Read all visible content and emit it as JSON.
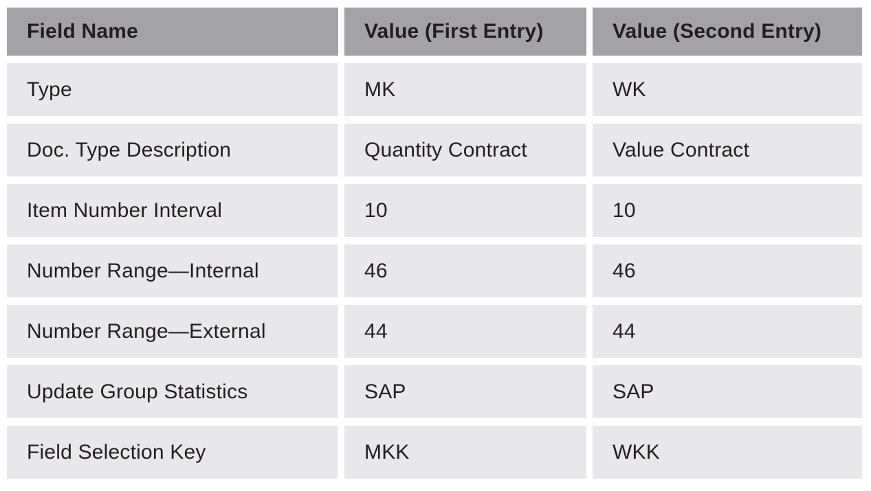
{
  "table": {
    "columns": [
      "Field Name",
      "Value (First Entry)",
      "Value (Second Entry)"
    ],
    "rows": [
      {
        "field": "Type",
        "first": "MK",
        "second": "WK"
      },
      {
        "field": "Doc. Type Description",
        "first": "Quantity Contract",
        "second": "Value Contract"
      },
      {
        "field": "Item Number Interval",
        "first": "10",
        "second": "10"
      },
      {
        "field": "Number Range—Internal",
        "first": "46",
        "second": "46"
      },
      {
        "field": "Number Range—External",
        "first": "44",
        "second": "44"
      },
      {
        "field": "Update Group Statistics",
        "first": "SAP",
        "second": "SAP"
      },
      {
        "field": "Field Selection Key",
        "first": "MKK",
        "second": "WKK"
      }
    ]
  },
  "colors": {
    "header_bg": "#a3a3a7",
    "row_bg": "#e8e8ea",
    "gutter": "#ffffff",
    "text": "#231f20"
  }
}
